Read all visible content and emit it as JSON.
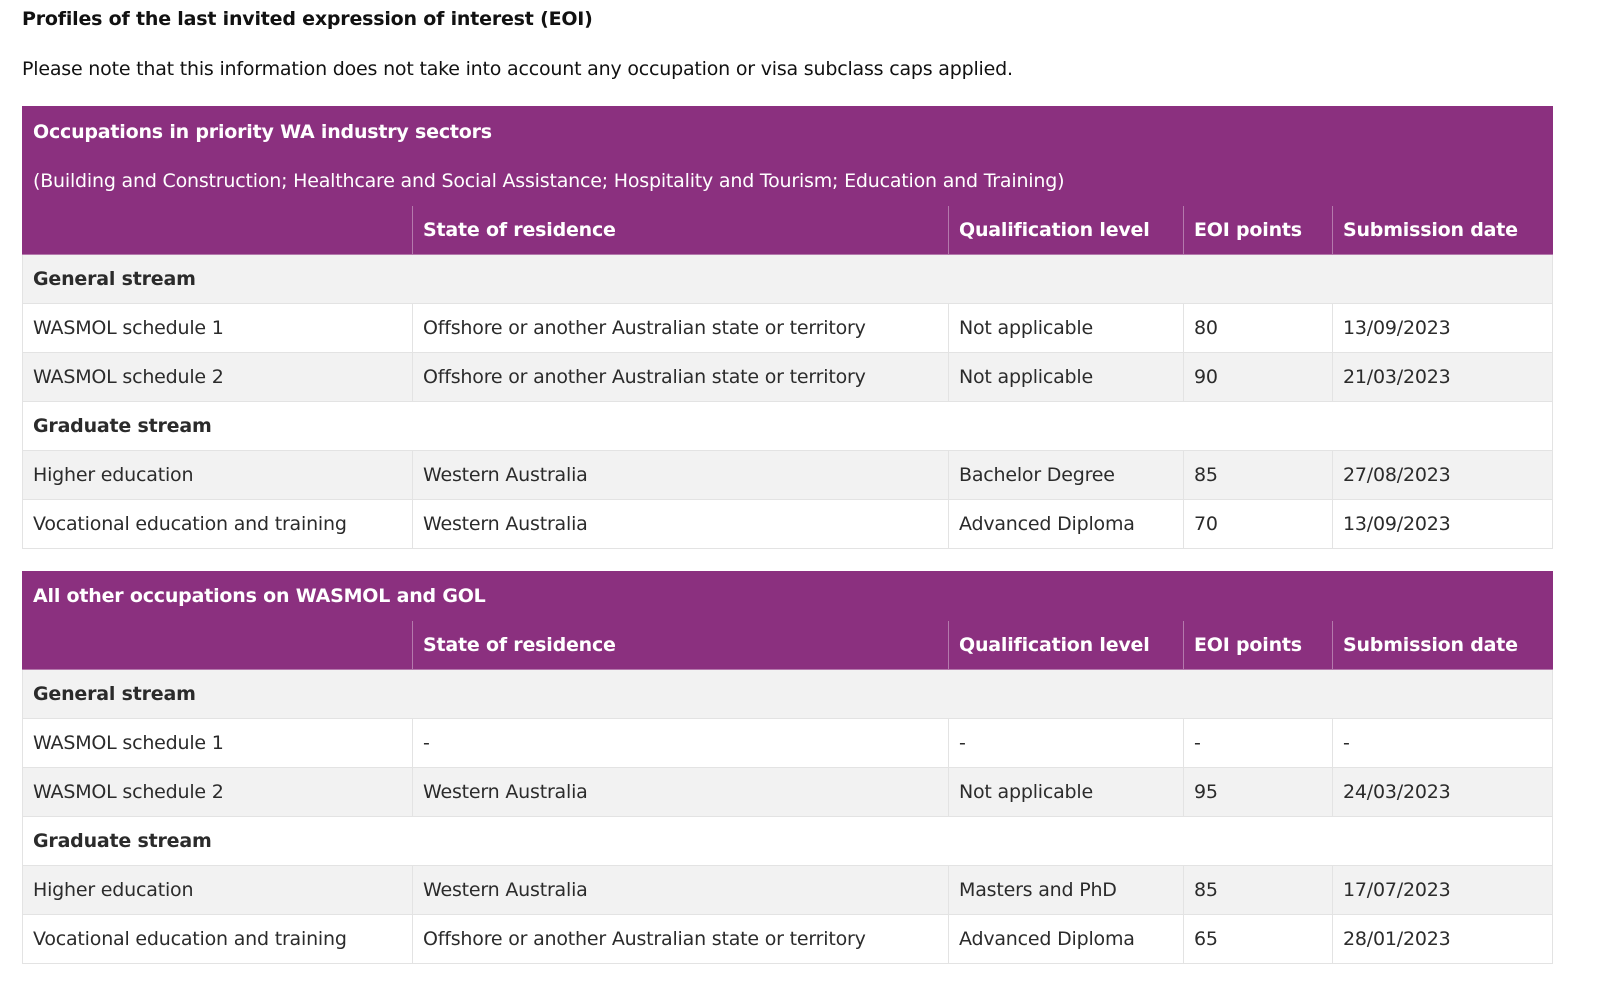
{
  "page": {
    "title": "Profiles of the last invited expression of interest (EOI)",
    "note": "Please note that this information does not take into account any occupation or visa subclass caps applied."
  },
  "columns": [
    "",
    "State of residence",
    "Qualification level",
    "EOI points",
    "Submission date"
  ],
  "tables": [
    {
      "title": "Occupations in priority WA industry sectors",
      "subtitle": "(Building and Construction; Healthcare and Social Assistance; Hospitality and Tourism; Education and Training)",
      "streams": [
        {
          "name": "General stream",
          "rows": [
            [
              "WASMOL schedule 1",
              "Offshore or another Australian state or territory",
              "Not applicable",
              "80",
              "13/09/2023"
            ],
            [
              "WASMOL schedule 2",
              "Offshore or another Australian state or territory",
              "Not applicable",
              "90",
              "21/03/2023"
            ]
          ]
        },
        {
          "name": "Graduate stream",
          "rows": [
            [
              "Higher education",
              "Western Australia",
              "Bachelor Degree",
              "85",
              "27/08/2023"
            ],
            [
              "Vocational education and training",
              "Western Australia",
              "Advanced Diploma",
              "70",
              "13/09/2023"
            ]
          ]
        }
      ]
    },
    {
      "title": "All other occupations on WASMOL and GOL",
      "streams": [
        {
          "name": "General stream",
          "rows": [
            [
              "WASMOL schedule 1",
              "-",
              "-",
              "-",
              "-"
            ],
            [
              "WASMOL schedule 2",
              "Western Australia",
              "Not applicable",
              "95",
              "24/03/2023"
            ]
          ]
        },
        {
          "name": "Graduate stream",
          "rows": [
            [
              "Higher education",
              "Western Australia",
              "Masters and PhD",
              "85",
              "17/07/2023"
            ],
            [
              "Vocational education and training",
              "Offshore or another Australian state or territory",
              "Advanced Diploma",
              "65",
              "28/01/2023"
            ]
          ]
        }
      ]
    }
  ],
  "colors": {
    "header_purple": "#8b307f",
    "row_shade": "#f2f2f2",
    "row_plain": "#ffffff",
    "border": "#e3e3e3"
  }
}
